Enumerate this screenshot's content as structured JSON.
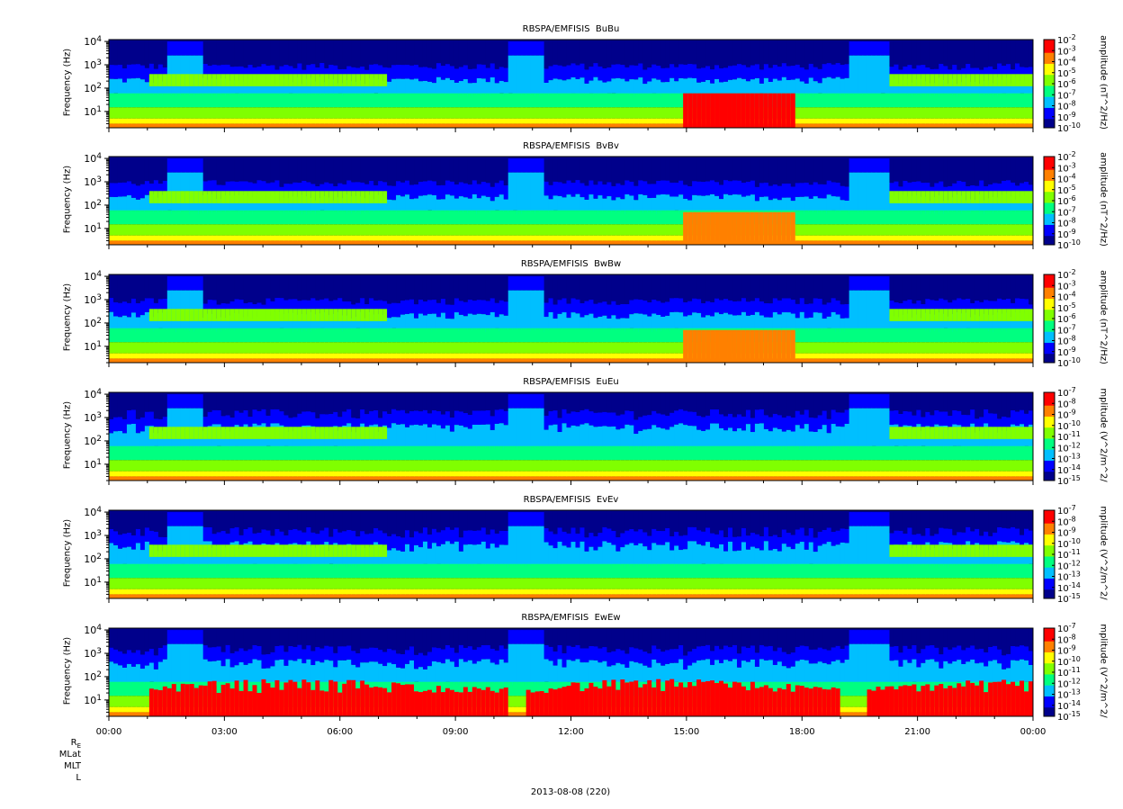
{
  "chart_data": [
    {
      "type": "heatmap",
      "title": "RBSPA/EMFISIS  BuBu",
      "ylabel": "Frequency (Hz)",
      "ylim": [
        2,
        12000
      ],
      "yscale": "log",
      "yticks": [
        "10^1",
        "10^2",
        "10^3",
        "10^4"
      ],
      "colorbar_label": "amplitude (nT^2/Hz)",
      "colorbar_ticks": [
        "10^-2",
        "10^-3",
        "10^-4",
        "10^-5",
        "10^-6",
        "10^-7",
        "10^-8",
        "10^-9",
        "10^-10"
      ]
    },
    {
      "type": "heatmap",
      "title": "RBSPA/EMFISIS  BvBv",
      "ylabel": "Frequency (Hz)",
      "ylim": [
        2,
        12000
      ],
      "yscale": "log",
      "yticks": [
        "10^1",
        "10^2",
        "10^3",
        "10^4"
      ],
      "colorbar_label": "amplitude (nT^2/Hz)",
      "colorbar_ticks": [
        "10^-2",
        "10^-3",
        "10^-4",
        "10^-5",
        "10^-6",
        "10^-7",
        "10^-8",
        "10^-9",
        "10^-10"
      ]
    },
    {
      "type": "heatmap",
      "title": "RBSPA/EMFISIS  BwBw",
      "ylabel": "Frequency (Hz)",
      "ylim": [
        2,
        12000
      ],
      "yscale": "log",
      "yticks": [
        "10^1",
        "10^2",
        "10^3",
        "10^4"
      ],
      "colorbar_label": "amplitude (nT^2/Hz)",
      "colorbar_ticks": [
        "10^-2",
        "10^-3",
        "10^-4",
        "10^-5",
        "10^-6",
        "10^-7",
        "10^-8",
        "10^-9",
        "10^-10"
      ]
    },
    {
      "type": "heatmap",
      "title": "RBSPA/EMFISIS  EuEu",
      "ylabel": "Frequency (Hz)",
      "ylim": [
        2,
        12000
      ],
      "yscale": "log",
      "yticks": [
        "10^1",
        "10^2",
        "10^3",
        "10^4"
      ],
      "colorbar_label": "mplitude (V^2/m^2/",
      "colorbar_ticks": [
        "10^-7",
        "10^-8",
        "10^-9",
        "10^-10",
        "10^-11",
        "10^-12",
        "10^-13",
        "10^-14",
        "10^-15"
      ]
    },
    {
      "type": "heatmap",
      "title": "RBSPA/EMFISIS  EvEv",
      "ylabel": "Frequency (Hz)",
      "ylim": [
        2,
        12000
      ],
      "yscale": "log",
      "yticks": [
        "10^1",
        "10^2",
        "10^3",
        "10^4"
      ],
      "colorbar_label": "mplitude (V^2/m^2/",
      "colorbar_ticks": [
        "10^-7",
        "10^-8",
        "10^-9",
        "10^-10",
        "10^-11",
        "10^-12",
        "10^-13",
        "10^-14",
        "10^-15"
      ]
    },
    {
      "type": "heatmap",
      "title": "RBSPA/EMFISIS  EwEw",
      "ylabel": "Frequency (Hz)",
      "ylim": [
        2,
        12000
      ],
      "yscale": "log",
      "yticks": [
        "10^1",
        "10^2",
        "10^3",
        "10^4"
      ],
      "colorbar_label": "mplitude (V^2/m^2/",
      "colorbar_ticks": [
        "10^-7",
        "10^-8",
        "10^-9",
        "10^-10",
        "10^-11",
        "10^-12",
        "10^-13",
        "10^-14",
        "10^-15"
      ]
    }
  ],
  "x_axis": {
    "tick_labels": [
      "00:00",
      "03:00",
      "06:00",
      "09:00",
      "12:00",
      "15:00",
      "18:00",
      "21:00",
      "00:00"
    ]
  },
  "ephemeris_labels": [
    "R_E",
    "MLat",
    "MLT",
    "L"
  ],
  "date_label": "2013-08-08 (220)",
  "colors": {
    "colormap": [
      "#00008b",
      "#0000ff",
      "#00bfff",
      "#00ff80",
      "#80ff00",
      "#ffff00",
      "#ff8000",
      "#ff0000"
    ],
    "background": "#000000"
  }
}
